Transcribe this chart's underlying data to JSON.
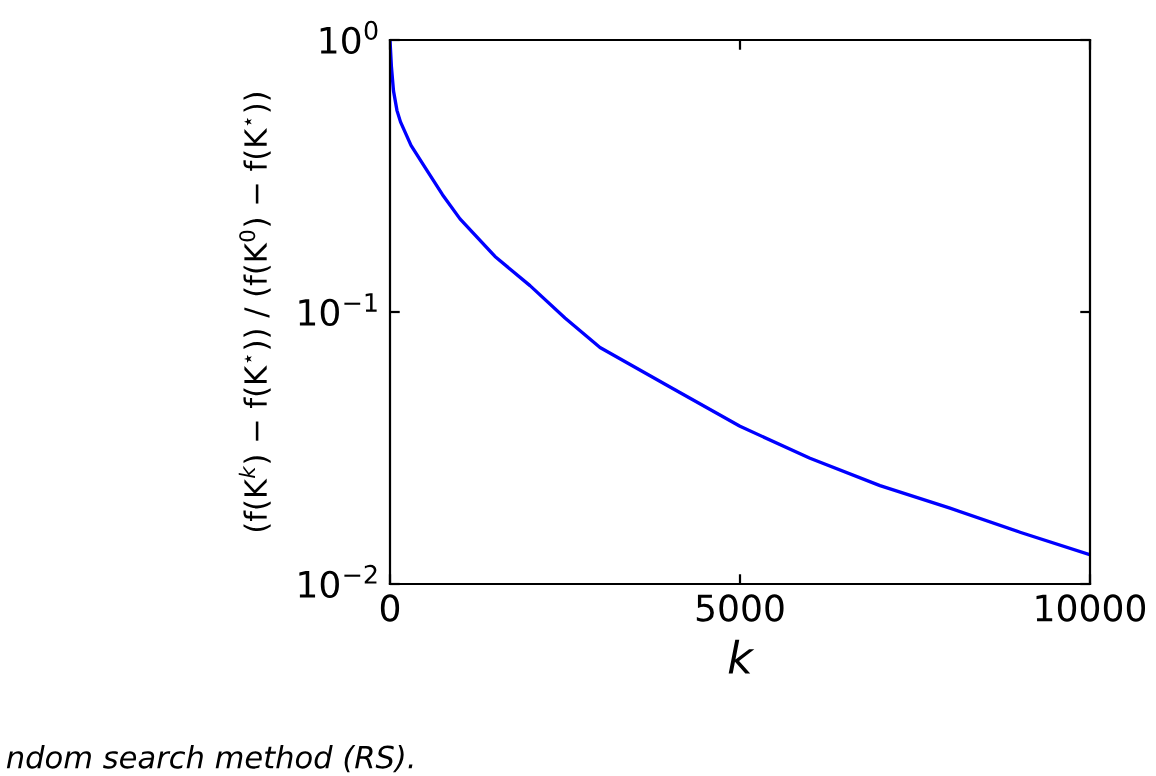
{
  "chart_data": {
    "type": "line",
    "xlabel": "k",
    "ylabel": "(f(K$^{k}$) − f(K$^{⋆}$)) / (f(K$^{0}$) − f(K$^{⋆}$))",
    "x": [
      0,
      20,
      50,
      100,
      150,
      300,
      500,
      750,
      1000,
      1500,
      2000,
      2500,
      3000,
      4000,
      5000,
      6000,
      7000,
      8000,
      9000,
      10000
    ],
    "series": [
      {
        "color": "#0000ff",
        "values": [
          1,
          0.8,
          0.65,
          0.55,
          0.5,
          0.41,
          0.34,
          0.27,
          0.22,
          0.16,
          0.125,
          0.095,
          0.074,
          0.053,
          0.038,
          0.029,
          0.023,
          0.019,
          0.0155,
          0.0128
        ]
      }
    ],
    "log": "y",
    "xlim": [
      0,
      10000
    ],
    "xticks": [
      0,
      5000,
      10000
    ],
    "ylim": [
      0.01,
      1
    ],
    "yticks": [
      {
        "value": 0.01,
        "label": "10$^{−2}$"
      },
      {
        "value": 0.1,
        "label": "10$^{−1}$"
      },
      {
        "value": 1,
        "label": "10$^{0}$"
      }
    ],
    "grid": false,
    "legend": false,
    "annotations": [
      "ndom search method (RS)."
    ]
  }
}
